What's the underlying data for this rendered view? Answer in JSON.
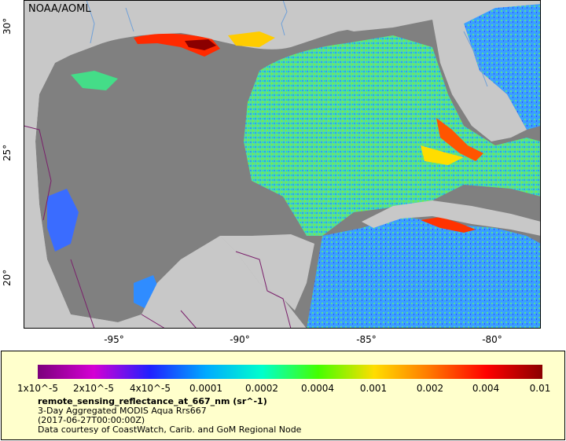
{
  "map": {
    "credit": "NOAA/AOML",
    "colors": {
      "land": "#c8c8c8",
      "no_data": "#808080",
      "border": "#7a1f6b",
      "river": "#6fa0d8"
    }
  },
  "axes": {
    "lon_labels": [
      "-95°",
      "-90°",
      "-85°",
      "-80°"
    ],
    "lat_labels": [
      "30°",
      "25°",
      "20°"
    ]
  },
  "legend": {
    "colorbar_stops": [
      "#7b007b",
      "#d400d4",
      "#2020ff",
      "#00aaff",
      "#00ffcc",
      "#44ff00",
      "#ffdd00",
      "#ff7700",
      "#ff0000",
      "#8b0000"
    ],
    "tick_labels": [
      "1x10^-5",
      "2x10^-5",
      "4x10^-5",
      "0.0001",
      "0.0002",
      "0.0004",
      "0.001",
      "0.002",
      "0.004",
      "0.01"
    ],
    "title": "remote_sensing_reflectance_at_667_nm (sr^-1)",
    "line1": "3-Day Aggregated MODIS Aqua Rrs667",
    "line2": "(2017-06-27T00:00:00Z)",
    "line3": "Data courtesy of CoastWatch, Carib. and GoM Regional Node"
  }
}
